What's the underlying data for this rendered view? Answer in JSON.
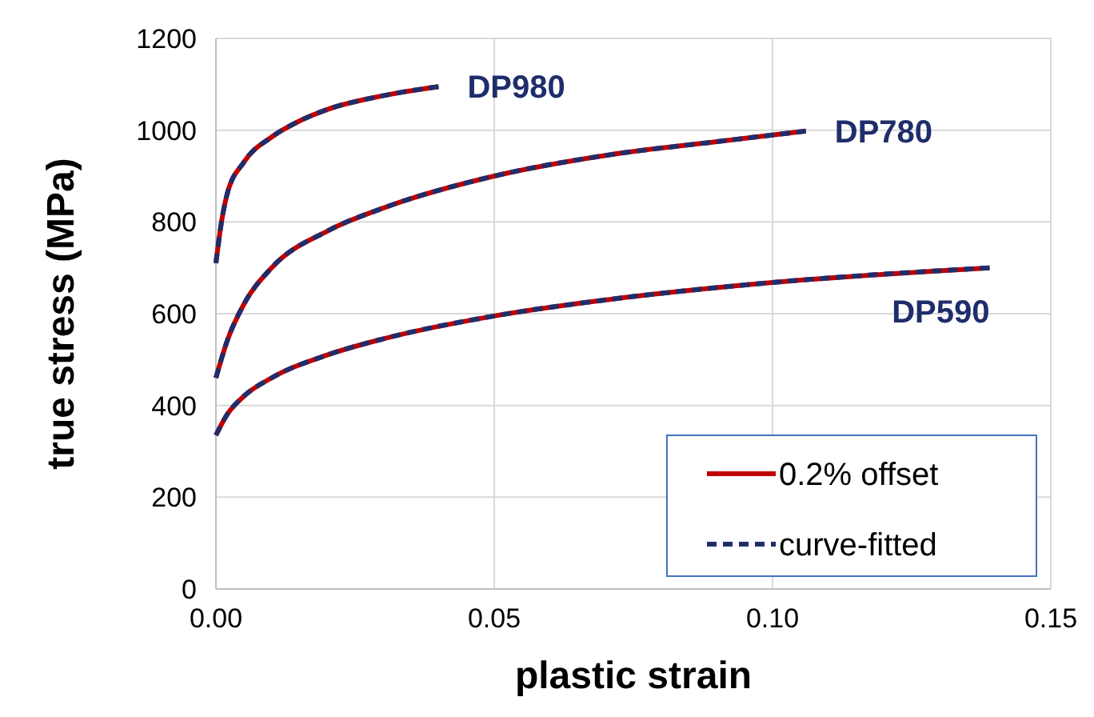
{
  "chart_data": {
    "type": "line",
    "xlabel": "plastic strain",
    "ylabel": "true stress (MPa)",
    "xlim": [
      0,
      0.15
    ],
    "xticks": [
      {
        "value": 0,
        "label": "0.00"
      },
      {
        "value": 0.05,
        "label": "0.05"
      },
      {
        "value": 0.1,
        "label": "0.10"
      },
      {
        "value": 0.15,
        "label": "0.15"
      }
    ],
    "ylim": [
      0,
      1200
    ],
    "yticks": [
      0,
      200,
      400,
      600,
      800,
      1000,
      1200
    ],
    "grid": true,
    "legend": "bottom right",
    "marker": "none",
    "series": [
      {
        "name": "0.2% offset",
        "color": "#c00000",
        "line_style": "solid",
        "x": [
          0,
          0.001,
          0.002,
          0.005,
          0.01,
          0.015,
          0.02,
          0.03,
          0.04
        ],
        "values": [
          710,
          800,
          860,
          930,
          985,
          1020,
          1045,
          1075,
          1095
        ]
      },
      {
        "name": "curve-fitted",
        "color": "#1f2d6b",
        "line_style": "dashed",
        "x": [
          0,
          0.001,
          0.002,
          0.005,
          0.01,
          0.015,
          0.02,
          0.03,
          0.04
        ],
        "values": [
          710,
          800,
          860,
          930,
          985,
          1020,
          1045,
          1075,
          1095
        ]
      },
      {
        "color": "#c00000",
        "line_style": "solid",
        "x": [
          0,
          0.002,
          0.005,
          0.01,
          0.02,
          0.03,
          0.05,
          0.07,
          0.09,
          0.106
        ],
        "values": [
          460,
          540,
          620,
          700,
          780,
          830,
          900,
          945,
          975,
          998
        ]
      },
      {
        "color": "#1f2d6b",
        "line_style": "dashed",
        "x": [
          0,
          0.002,
          0.005,
          0.01,
          0.02,
          0.03,
          0.05,
          0.07,
          0.09,
          0.106
        ],
        "values": [
          460,
          540,
          620,
          700,
          780,
          830,
          900,
          945,
          975,
          998
        ]
      },
      {
        "color": "#c00000",
        "line_style": "solid",
        "x": [
          0,
          0.002,
          0.005,
          0.01,
          0.02,
          0.03,
          0.05,
          0.07,
          0.1,
          0.139
        ],
        "values": [
          335,
          380,
          420,
          460,
          510,
          545,
          595,
          630,
          668,
          700
        ]
      },
      {
        "color": "#1f2d6b",
        "line_style": "dashed",
        "x": [
          0,
          0.002,
          0.005,
          0.01,
          0.02,
          0.03,
          0.05,
          0.07,
          0.1,
          0.139
        ],
        "values": [
          335,
          380,
          420,
          460,
          510,
          545,
          595,
          630,
          668,
          700
        ]
      }
    ],
    "annotations": [
      {
        "text": "DP980",
        "x": 0.04,
        "y": 1095
      },
      {
        "text": "DP780",
        "x": 0.106,
        "y": 998
      },
      {
        "text": "DP590",
        "x": 0.139,
        "y": 700
      }
    ]
  }
}
